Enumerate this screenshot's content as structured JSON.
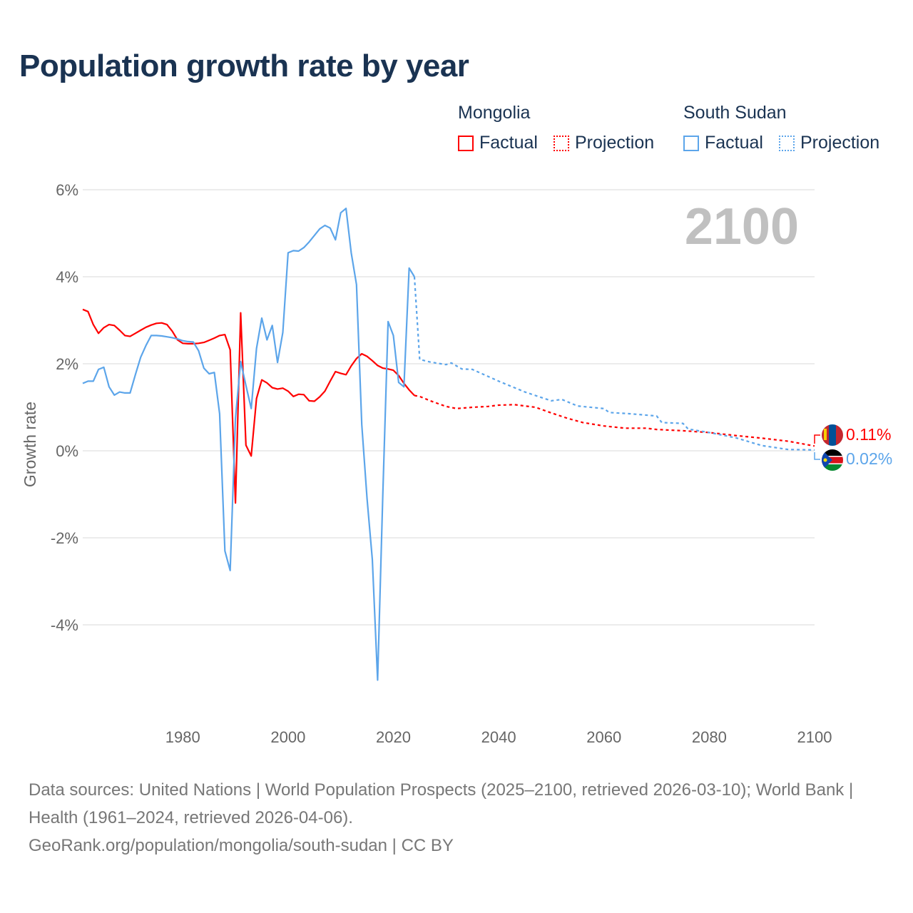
{
  "title": "Population growth rate by year",
  "legend": {
    "groups": [
      {
        "country": "Mongolia",
        "color": "#ff0000",
        "factual": "Factual",
        "projection": "Projection"
      },
      {
        "country": "South Sudan",
        "color": "#5ca5ea",
        "factual": "Factual",
        "projection": "Projection"
      }
    ]
  },
  "year_badge": "2100",
  "end_labels": {
    "mongolia": "0.11%",
    "south_sudan": "0.02%"
  },
  "footer": {
    "sources": "Data sources: United Nations | World Population Prospects (2025–2100, retrieved 2026-03-10); World Bank | Health (1961–2024, retrieved 2026-04-06).",
    "credit": "GeoRank.org/population/mongolia/south-sudan | CC BY"
  },
  "chart_data": {
    "type": "line",
    "title": "Population growth rate by year",
    "xlabel": "",
    "ylabel": "Growth rate",
    "xlim": [
      1961,
      2100
    ],
    "ylim": [
      -6,
      6
    ],
    "xticks": [
      1980,
      2000,
      2020,
      2040,
      2060,
      2080,
      2100
    ],
    "yticks": [
      6,
      4,
      2,
      0,
      -2,
      -4
    ],
    "ytick_labels": [
      "6%",
      "4%",
      "2%",
      "0%",
      "-2%",
      "-4%"
    ],
    "grid": true,
    "series": [
      {
        "name": "Mongolia Factual",
        "color": "#ff0000",
        "dashed": false,
        "start_year": 1961,
        "values": [
          3.25,
          3.2,
          2.9,
          2.7,
          2.83,
          2.9,
          2.88,
          2.77,
          2.65,
          2.63,
          2.7,
          2.77,
          2.84,
          2.89,
          2.93,
          2.94,
          2.9,
          2.75,
          2.55,
          2.47,
          2.46,
          2.46,
          2.47,
          2.49,
          2.54,
          2.59,
          2.65,
          2.67,
          2.32,
          -1.2,
          3.17,
          0.13,
          -0.12,
          1.2,
          1.63,
          1.56,
          1.45,
          1.42,
          1.44,
          1.37,
          1.25,
          1.3,
          1.29,
          1.15,
          1.14,
          1.24,
          1.37,
          1.6,
          1.82,
          1.78,
          1.75,
          1.95,
          2.12,
          2.23,
          2.17,
          2.07,
          1.96,
          1.9,
          1.88,
          1.85,
          1.73,
          1.55,
          1.4,
          1.27
        ]
      },
      {
        "name": "Mongolia Projection",
        "color": "#ff0000",
        "dashed": true,
        "points": [
          [
            2024,
            1.27
          ],
          [
            2025,
            1.25
          ],
          [
            2027,
            1.15
          ],
          [
            2030,
            1.02
          ],
          [
            2032,
            0.97
          ],
          [
            2035,
            1.0
          ],
          [
            2038,
            1.02
          ],
          [
            2040,
            1.05
          ],
          [
            2043,
            1.06
          ],
          [
            2047,
            1.0
          ],
          [
            2050,
            0.87
          ],
          [
            2053,
            0.75
          ],
          [
            2056,
            0.65
          ],
          [
            2060,
            0.57
          ],
          [
            2064,
            0.52
          ],
          [
            2068,
            0.52
          ],
          [
            2070,
            0.49
          ],
          [
            2075,
            0.46
          ],
          [
            2080,
            0.42
          ],
          [
            2085,
            0.35
          ],
          [
            2090,
            0.29
          ],
          [
            2095,
            0.22
          ],
          [
            2100,
            0.11
          ]
        ]
      },
      {
        "name": "South Sudan Factual",
        "color": "#5ca5ea",
        "dashed": false,
        "start_year": 1961,
        "values": [
          1.55,
          1.6,
          1.6,
          1.87,
          1.92,
          1.47,
          1.28,
          1.35,
          1.33,
          1.33,
          1.75,
          2.15,
          2.42,
          2.65,
          2.65,
          2.64,
          2.62,
          2.6,
          2.57,
          2.53,
          2.51,
          2.5,
          2.3,
          1.9,
          1.77,
          1.8,
          0.85,
          -2.3,
          -2.75,
          0.75,
          2.05,
          1.5,
          0.97,
          2.35,
          3.05,
          2.55,
          2.88,
          2.03,
          2.72,
          4.55,
          4.6,
          4.59,
          4.67,
          4.8,
          4.95,
          5.1,
          5.18,
          5.12,
          4.85,
          5.47,
          5.57,
          4.55,
          3.82,
          0.6,
          -1.1,
          -2.5,
          -5.27,
          -1.0,
          2.97,
          2.65,
          1.57,
          1.47,
          4.2,
          4.0
        ]
      },
      {
        "name": "South Sudan Projection",
        "color": "#5ca5ea",
        "dashed": true,
        "points": [
          [
            2024,
            4.0
          ],
          [
            2025,
            2.1
          ],
          [
            2027,
            2.04
          ],
          [
            2030,
            1.98
          ],
          [
            2031,
            2.02
          ],
          [
            2033,
            1.88
          ],
          [
            2035,
            1.87
          ],
          [
            2040,
            1.6
          ],
          [
            2045,
            1.35
          ],
          [
            2050,
            1.15
          ],
          [
            2052,
            1.18
          ],
          [
            2055,
            1.03
          ],
          [
            2060,
            0.97
          ],
          [
            2061,
            0.88
          ],
          [
            2065,
            0.85
          ],
          [
            2070,
            0.8
          ],
          [
            2071,
            0.65
          ],
          [
            2075,
            0.63
          ],
          [
            2076,
            0.5
          ],
          [
            2080,
            0.42
          ],
          [
            2085,
            0.3
          ],
          [
            2090,
            0.12
          ],
          [
            2095,
            0.03
          ],
          [
            2100,
            0.02
          ]
        ]
      }
    ]
  }
}
